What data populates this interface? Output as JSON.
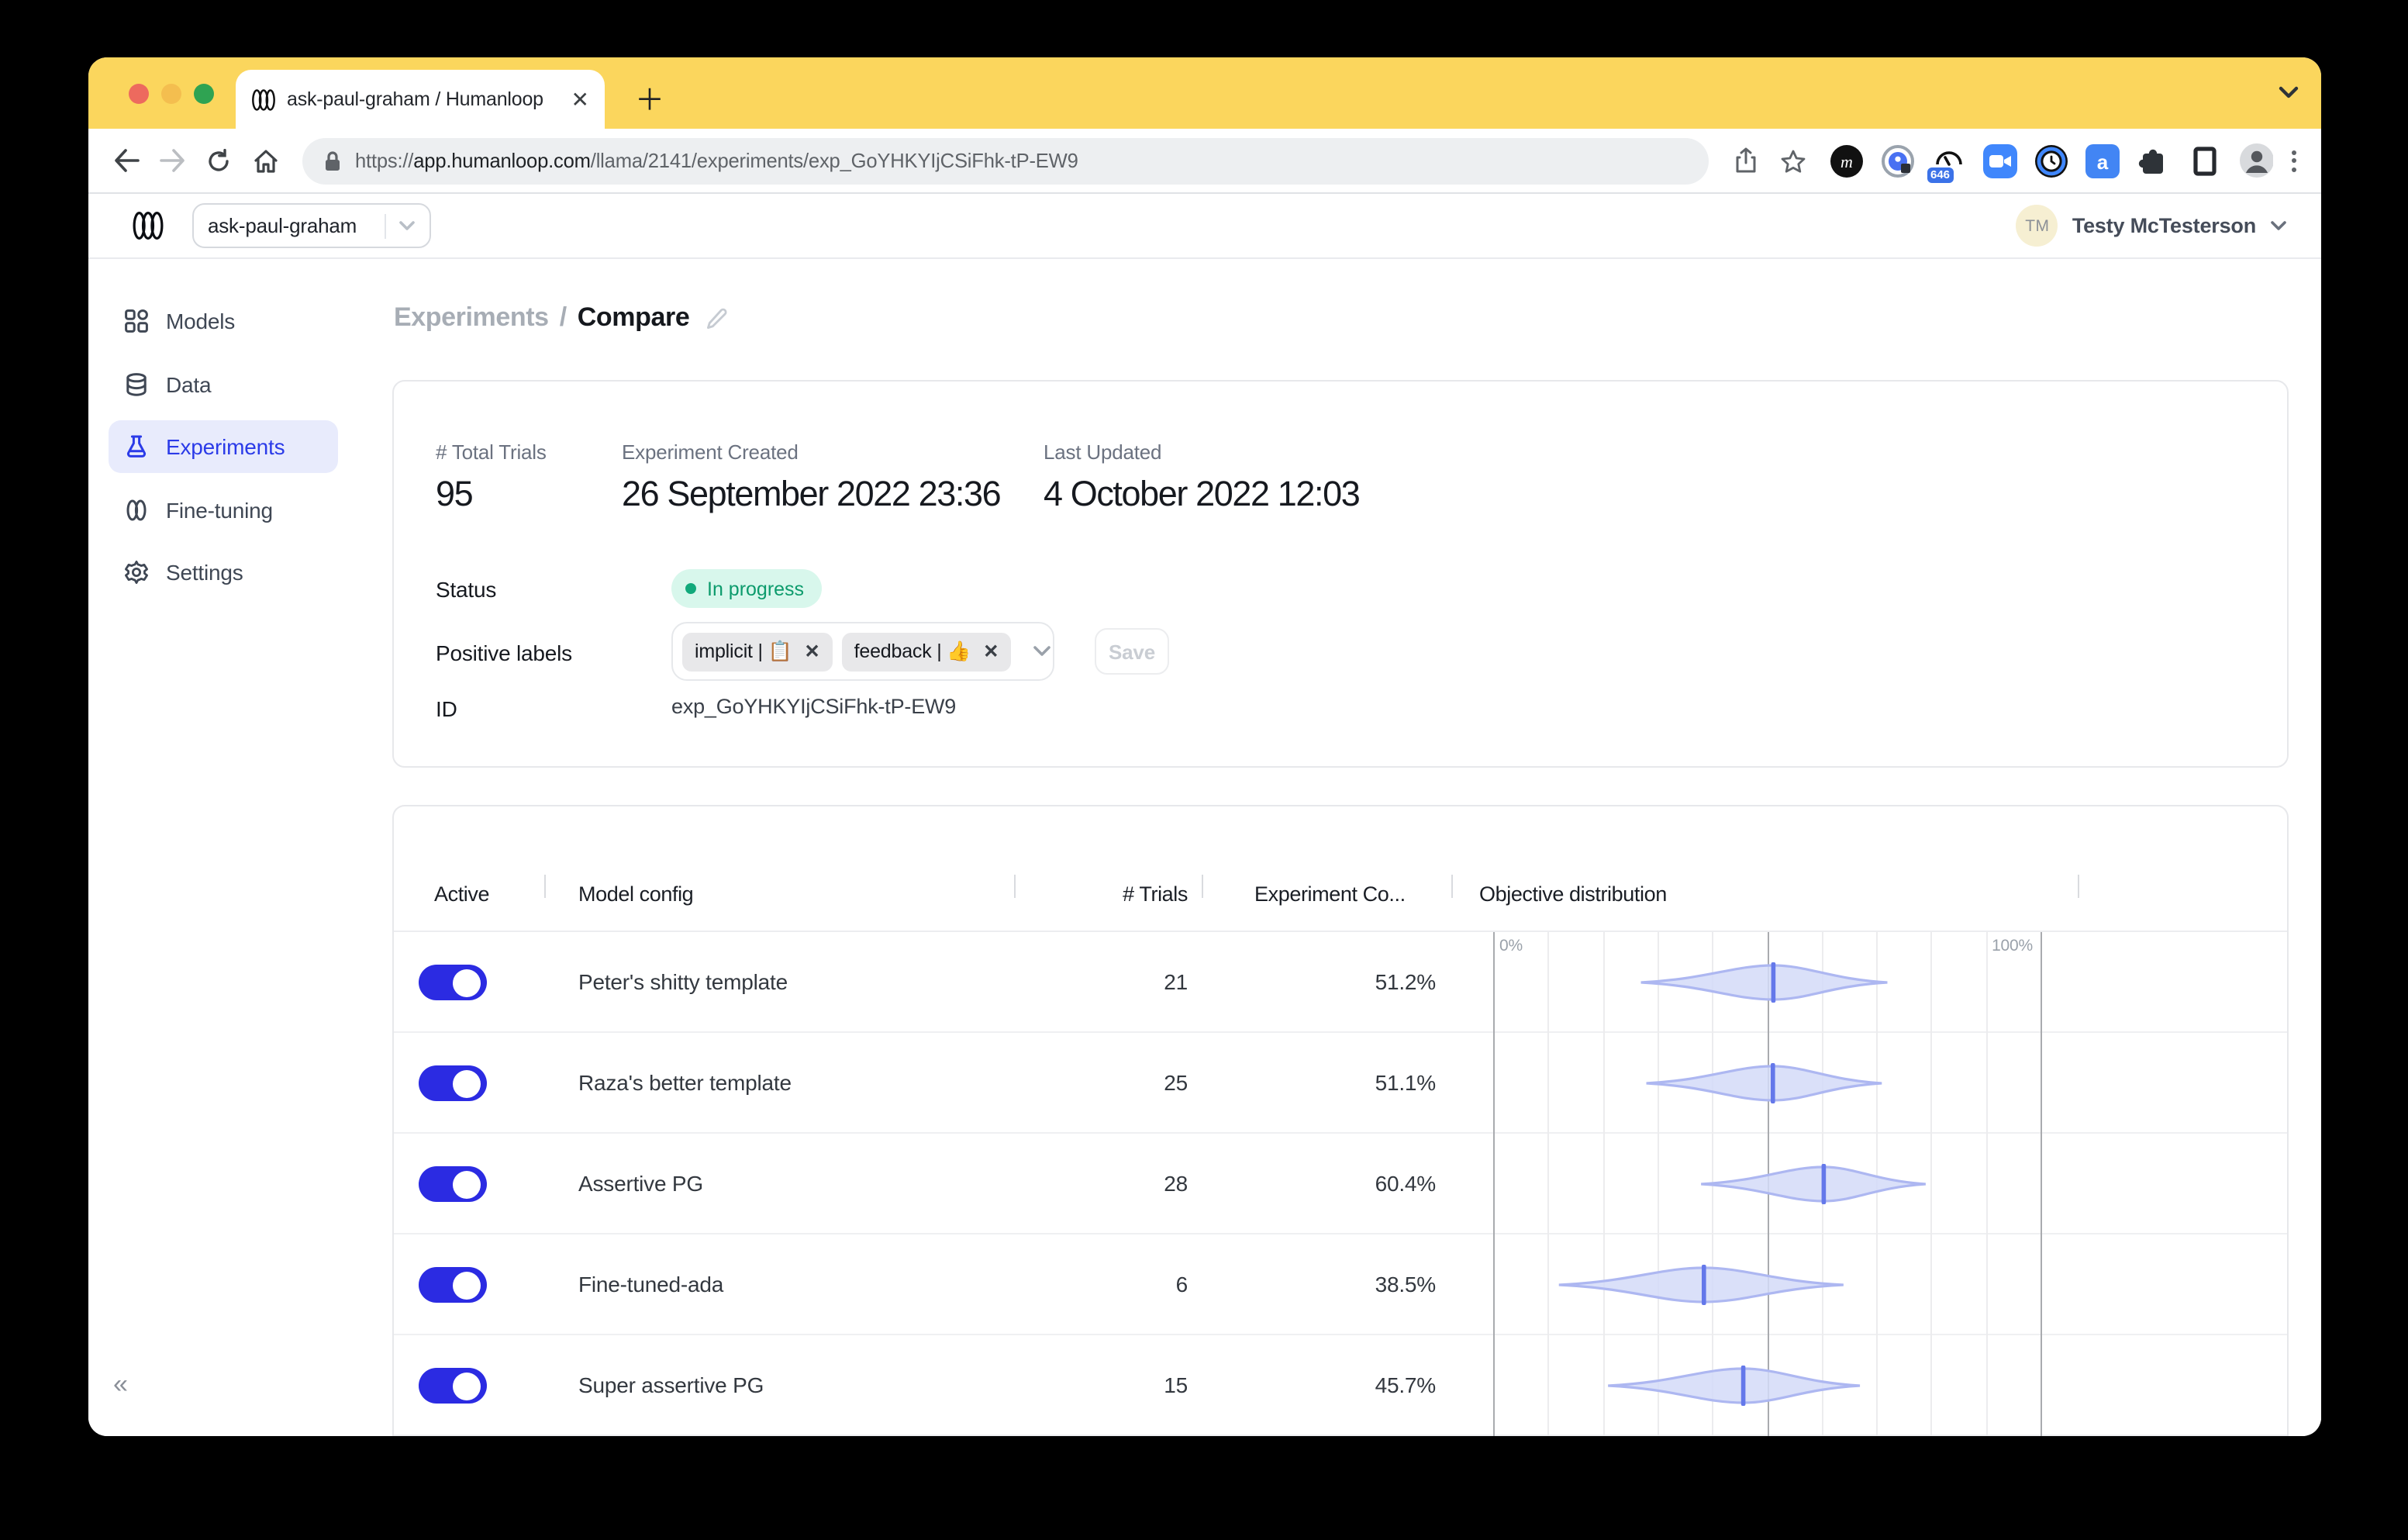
{
  "browser": {
    "tab": {
      "title": "ask-paul-graham / Humanloop"
    },
    "url": {
      "protocol": "https://",
      "domain": "app.humanloop.com",
      "path": "/llama/2141/experiments/exp_GoYHKYIjCSiFhk-tP-EW9"
    },
    "extension_badge_count": "646",
    "traffic_light_colors": [
      "#ED6A5E",
      "#F4BE4F",
      "#2FA352"
    ],
    "tab_strip_color": "#FBD65D"
  },
  "app": {
    "header": {
      "project_selector_value": "ask-paul-graham",
      "user_initials": "TM",
      "user_name": "Testy McTesterson"
    },
    "sidebar": {
      "items": [
        {
          "label": "Models",
          "icon": "grid-icon"
        },
        {
          "label": "Data",
          "icon": "database-icon"
        },
        {
          "label": "Experiments",
          "icon": "flask-icon",
          "active": true
        },
        {
          "label": "Fine-tuning",
          "icon": "loops-icon"
        },
        {
          "label": "Settings",
          "icon": "gear-icon"
        }
      ]
    },
    "breadcrumb": {
      "section": "Experiments",
      "separator": "/",
      "page": "Compare"
    },
    "info_card": {
      "stats": [
        {
          "label": "# Total Trials",
          "value": "95"
        },
        {
          "label": "Experiment Created",
          "value": "26 September 2022 23:36"
        },
        {
          "label": "Last Updated",
          "value": "4 October 2022 12:03"
        }
      ],
      "status_label": "Status",
      "status_value": "In progress",
      "positive_labels_label": "Positive labels",
      "chips": [
        {
          "text": "implicit | 📋"
        },
        {
          "text": "feedback | 👍"
        }
      ],
      "save_label": "Save",
      "id_label": "ID",
      "id_value": "exp_GoYHKYIjCSiFhk-tP-EW9"
    },
    "table": {
      "columns": [
        "Active",
        "Model config",
        "# Trials",
        "Experiment Co...",
        "Objective distribution"
      ],
      "axis": {
        "min_label": "0%",
        "max_label": "100%"
      },
      "rows": [
        {
          "active": true,
          "model_config": "Peter's shitty template",
          "trials": "21",
          "conversion": "51.2%"
        },
        {
          "active": true,
          "model_config": "Raza's better template",
          "trials": "25",
          "conversion": "51.1%"
        },
        {
          "active": true,
          "model_config": "Assertive PG",
          "trials": "28",
          "conversion": "60.4%"
        },
        {
          "active": true,
          "model_config": "Fine-tuned-ada",
          "trials": "6",
          "conversion": "38.5%"
        },
        {
          "active": true,
          "model_config": "Super assertive PG",
          "trials": "15",
          "conversion": "45.7%"
        }
      ]
    }
  },
  "chart_data": {
    "type": "violin",
    "title": "Objective distribution",
    "x_unit": "%",
    "x_range": [
      0,
      100
    ],
    "gridlines_every": 10,
    "emphasized_gridlines": [
      0,
      50,
      100
    ],
    "rows": [
      {
        "label": "Peter's shitty template",
        "min": 27,
        "max": 72,
        "median": 51.2
      },
      {
        "label": "Raza's better template",
        "min": 28,
        "max": 71,
        "median": 51.1
      },
      {
        "label": "Assertive PG",
        "min": 38,
        "max": 79,
        "median": 60.4
      },
      {
        "label": "Fine-tuned-ada",
        "min": 12,
        "max": 64,
        "median": 38.5
      },
      {
        "label": "Super assertive PG",
        "min": 21,
        "max": 67,
        "median": 45.7
      }
    ],
    "colors": {
      "violin_fill": "#D4DAF8",
      "violin_stroke": "#ADB7F1",
      "median_bar": "#6478EA"
    }
  },
  "colors": {
    "accent_blue": "#2B3BE8",
    "toggle_blue": "#2B2BE2",
    "status_green": "#0C9B6C",
    "active_item_bg": "#E8EBFC"
  }
}
